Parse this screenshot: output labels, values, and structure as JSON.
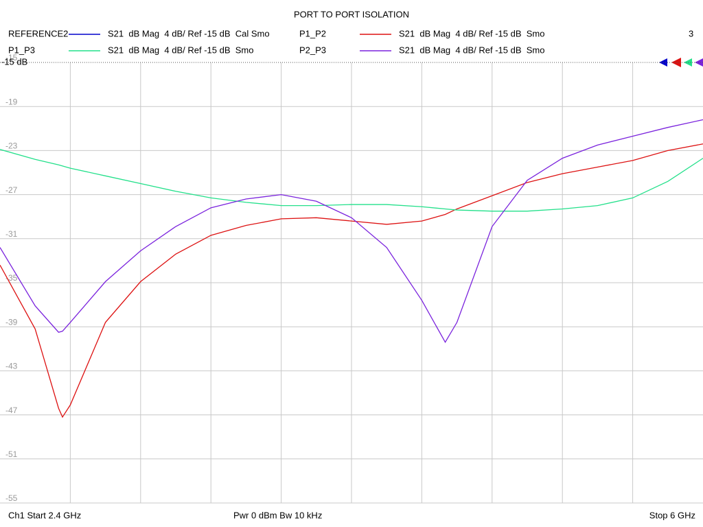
{
  "chart_data": {
    "type": "line",
    "title": "PORT TO PORT ISOLATION",
    "x": [
      2.4,
      2.58,
      2.7,
      2.72,
      2.76,
      2.94,
      3.12,
      3.3,
      3.48,
      3.66,
      3.84,
      4.02,
      4.2,
      4.38,
      4.56,
      4.68,
      4.74,
      4.92,
      5.1,
      5.28,
      5.46,
      5.64,
      5.82,
      6.0
    ],
    "xlim": [
      2.4,
      6.0
    ],
    "ylim": [
      -55,
      -15
    ],
    "yticks": [
      -15,
      -19,
      -23,
      -27,
      -31,
      -35,
      -39,
      -43,
      -47,
      -51,
      -55
    ],
    "grid": true,
    "reference_label": "-15 dB",
    "window_number": "3",
    "series": [
      {
        "name": "REFERENCE2",
        "trace_label": "S21  dB Mag  4 dB/ Ref -15 dB  Cal Smo",
        "color": "#0000cc",
        "values": [
          null,
          null,
          null,
          null,
          null,
          null,
          null,
          null,
          null,
          null,
          null,
          null,
          null,
          null,
          null,
          null,
          null,
          null,
          null,
          null,
          null,
          null,
          null,
          null
        ]
      },
      {
        "name": "P1_P2",
        "trace_label": "S21  dB Mag  4 dB/ Ref -15 dB  Smo",
        "color": "#dd1111",
        "values": [
          -33.4,
          -39.2,
          -46.4,
          -47.2,
          -46.1,
          -38.6,
          -34.9,
          -32.4,
          -30.7,
          -29.8,
          -29.2,
          -29.1,
          -29.4,
          -29.7,
          -29.4,
          -28.8,
          -28.3,
          -27.1,
          -25.9,
          -25.1,
          -24.5,
          -23.9,
          -23.0,
          -22.4
        ]
      },
      {
        "name": "P1_P3",
        "trace_label": "S21  dB Mag  4 dB/ Ref -15 dB  Smo",
        "color": "#22e08a",
        "values": [
          -22.9,
          -23.8,
          -24.3,
          -24.4,
          -24.6,
          -25.3,
          -26.0,
          -26.7,
          -27.3,
          -27.7,
          -28.0,
          -28.0,
          -27.9,
          -27.9,
          -28.1,
          -28.3,
          -28.4,
          -28.5,
          -28.5,
          -28.3,
          -28.0,
          -27.3,
          -25.8,
          -23.7
        ]
      },
      {
        "name": "P2_P3",
        "trace_label": "S21  dB Mag  4 dB/ Ref -15 dB  Smo",
        "color": "#7a22dd",
        "values": [
          -31.8,
          -37.1,
          -39.5,
          -39.4,
          -38.6,
          -34.9,
          -32.1,
          -29.9,
          -28.2,
          -27.4,
          -27.0,
          -27.6,
          -29.1,
          -31.8,
          -36.6,
          -40.4,
          -38.6,
          -29.9,
          -25.7,
          -23.7,
          -22.5,
          -21.7,
          -20.9,
          -20.2
        ]
      }
    ],
    "footer": {
      "start": "Ch1  Start  2.4 GHz",
      "power": "Pwr  0 dBm  Bw  10 kHz",
      "stop": "Stop  6 GHz"
    }
  }
}
